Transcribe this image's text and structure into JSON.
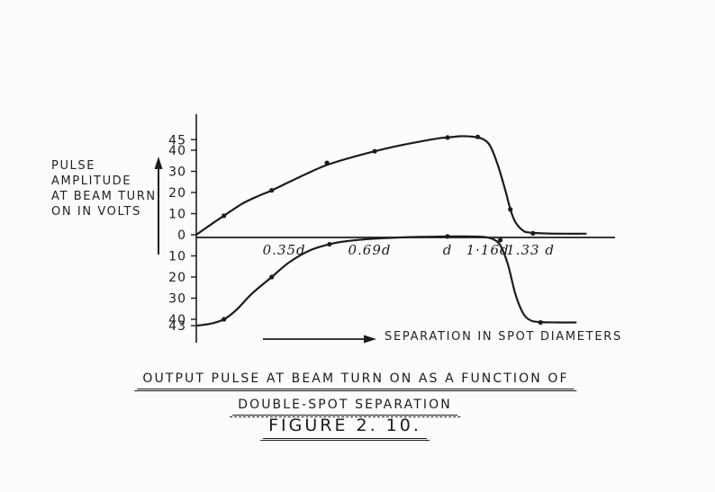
{
  "figure": {
    "ylabel_lines": [
      "PULSE",
      "AMPLITUDE",
      "AT BEAM TURN",
      "ON IN VOLTS"
    ],
    "xlabel": "SEPARATION IN SPOT DIAMETERS",
    "title_line1": "OUTPUT PULSE AT BEAM TURN ON AS A FUNCTION OF",
    "title_line2": "DOUBLE-SPOT SEPARATION",
    "figure_caption": "FIGURE 2. 10.",
    "ink_color": "#1c1c1c",
    "paper_color": "#fcfcfc"
  },
  "chart_data": {
    "type": "line",
    "title": "OUTPUT PULSE AT BEAM TURN ON AS A FUNCTION OF DOUBLE-SPOT SEPARATION",
    "figure_label": "FIGURE 2.10.",
    "xlabel": "SEPARATION IN SPOT DIAMETERS",
    "ylabel": "PULSE AMPLITUDE AT BEAM TURN ON IN VOLTS",
    "x_unit": "spot diameter (d)",
    "xlim": [
      0,
      1.67
    ],
    "ylim": [
      -45,
      50
    ],
    "grid": false,
    "legend": "none",
    "y_ticks": [
      {
        "value": 45,
        "label": "45"
      },
      {
        "value": 40,
        "label": "40"
      },
      {
        "value": 30,
        "label": "30"
      },
      {
        "value": 20,
        "label": "20"
      },
      {
        "value": 10,
        "label": "10"
      },
      {
        "value": 0,
        "label": "0"
      },
      {
        "value": -10,
        "label": "10"
      },
      {
        "value": -20,
        "label": "20"
      },
      {
        "value": -30,
        "label": "30"
      },
      {
        "value": -40,
        "label": "40"
      },
      {
        "value": -43,
        "label": "43"
      }
    ],
    "x_ticks": [
      {
        "value": 0.35,
        "label": "0.35d"
      },
      {
        "value": 0.69,
        "label": "0.69d"
      },
      {
        "value": 1.0,
        "label": "d"
      },
      {
        "value": 1.16,
        "label": "1·16d"
      },
      {
        "value": 1.33,
        "label": "1.33 d"
      }
    ],
    "series": [
      {
        "name": "positive pulse amplitude lobe",
        "points": [
          [
            0,
            0
          ],
          [
            0.06,
            5
          ],
          [
            0.11,
            9
          ],
          [
            0.18,
            14.5
          ],
          [
            0.24,
            18
          ],
          [
            0.3,
            21
          ],
          [
            0.37,
            25
          ],
          [
            0.45,
            29.5
          ],
          [
            0.52,
            33
          ],
          [
            0.6,
            36
          ],
          [
            0.71,
            39.5
          ],
          [
            0.8,
            42
          ],
          [
            0.9,
            44.3
          ],
          [
            0.97,
            45.7
          ],
          [
            1.0,
            46
          ],
          [
            1.05,
            46.6
          ],
          [
            1.1,
            46.4
          ],
          [
            1.14,
            45.3
          ],
          [
            1.17,
            42
          ],
          [
            1.2,
            33
          ],
          [
            1.23,
            21
          ],
          [
            1.25,
            12
          ],
          [
            1.27,
            6
          ],
          [
            1.3,
            2
          ],
          [
            1.33,
            1
          ],
          [
            1.4,
            0.6
          ],
          [
            1.48,
            0.5
          ],
          [
            1.55,
            0.5
          ]
        ],
        "markers": [
          [
            0.11,
            9
          ],
          [
            0.3,
            21
          ],
          [
            0.52,
            34
          ],
          [
            0.71,
            39.5
          ],
          [
            1.0,
            46
          ],
          [
            1.12,
            46.3
          ],
          [
            1.25,
            12
          ],
          [
            1.34,
            0.7
          ]
        ]
      },
      {
        "name": "negative pulse amplitude lobe",
        "points": [
          [
            0,
            -43
          ],
          [
            0.06,
            -42
          ],
          [
            0.11,
            -40
          ],
          [
            0.16,
            -35.5
          ],
          [
            0.22,
            -28
          ],
          [
            0.3,
            -20
          ],
          [
            0.37,
            -13
          ],
          [
            0.45,
            -7.5
          ],
          [
            0.53,
            -4.5
          ],
          [
            0.6,
            -3
          ],
          [
            0.69,
            -2
          ],
          [
            0.8,
            -1.3
          ],
          [
            0.9,
            -1
          ],
          [
            1.0,
            -0.8
          ],
          [
            1.08,
            -0.8
          ],
          [
            1.14,
            -1
          ],
          [
            1.18,
            -2
          ],
          [
            1.21,
            -5
          ],
          [
            1.24,
            -14
          ],
          [
            1.27,
            -28
          ],
          [
            1.3,
            -37
          ],
          [
            1.33,
            -40.5
          ],
          [
            1.37,
            -41.3
          ],
          [
            1.44,
            -41.5
          ],
          [
            1.51,
            -41.5
          ]
        ],
        "markers": [
          [
            0.11,
            -40
          ],
          [
            0.3,
            -20
          ],
          [
            0.53,
            -4.5
          ],
          [
            1.0,
            -0.8
          ],
          [
            1.21,
            -2.5
          ],
          [
            1.37,
            -41.5
          ]
        ]
      }
    ]
  }
}
